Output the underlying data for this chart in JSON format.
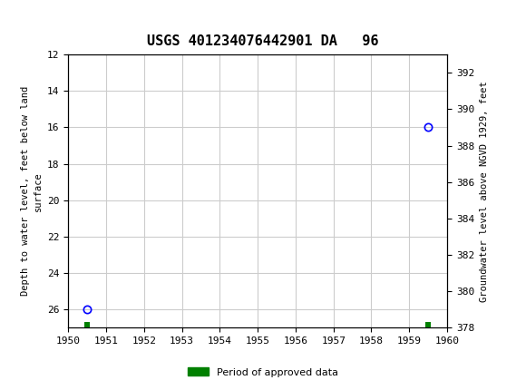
{
  "title": "USGS 401234076442901 DA   96",
  "header_bg_color": "#1a7a3c",
  "left_ylabel": "Depth to water level, feet below land\nsurface",
  "right_ylabel": "Groundwater level above NGVD 1929, feet",
  "xlim": [
    1950,
    1960
  ],
  "xticks": [
    1950,
    1951,
    1952,
    1953,
    1954,
    1955,
    1956,
    1957,
    1958,
    1959,
    1960
  ],
  "ylim_left": [
    12,
    27
  ],
  "yticks_left": [
    12,
    14,
    16,
    18,
    20,
    22,
    24,
    26
  ],
  "ylim_right": [
    378,
    393
  ],
  "yticks_right": [
    378,
    380,
    382,
    384,
    386,
    388,
    390,
    392
  ],
  "data_points": [
    {
      "x": 1950.5,
      "y_left": 26.0,
      "color": "#0000ff"
    },
    {
      "x": 1959.5,
      "y_left": 16.0,
      "color": "#0000ff"
    }
  ],
  "approved_bars": [
    {
      "x": 1950.5
    },
    {
      "x": 1959.5
    }
  ],
  "approved_color": "#008000",
  "approved_bar_width": 0.15,
  "approved_bar_y_bottom": 26.7,
  "approved_bar_height": 0.3,
  "grid_color": "#cccccc",
  "bg_color": "#ffffff",
  "legend_label": "Period of approved data",
  "legend_color": "#008000"
}
